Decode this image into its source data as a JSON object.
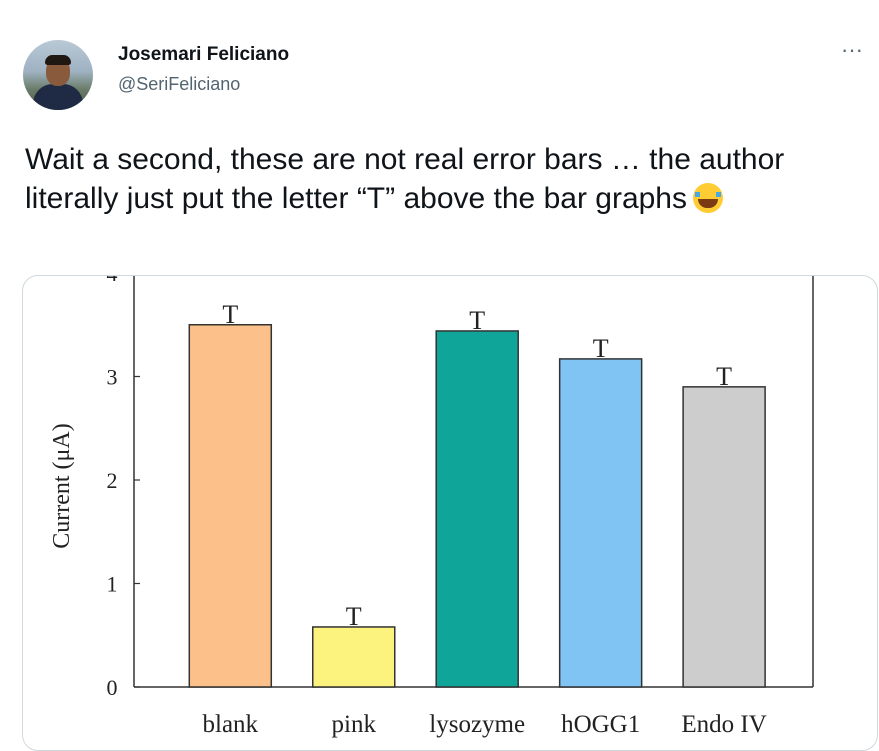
{
  "tweet": {
    "display_name": "Josemari Feliciano",
    "handle": "@SeriFeliciano",
    "more_label": "···",
    "text": "Wait a second, these are not real error bars … the author literally just put the letter “T” above the bar graphs",
    "emoji_icon": "loudly-crying-face-icon"
  },
  "chart_data": {
    "type": "bar",
    "categories": [
      "blank",
      "pink",
      "lysozyme",
      "hOGG1",
      "Endo IV"
    ],
    "values": [
      3.5,
      0.58,
      3.44,
      3.17,
      2.9
    ],
    "colors": [
      "#fcc08b",
      "#fcf27e",
      "#0fa699",
      "#7fc4f3",
      "#cdcdcd"
    ],
    "error_marker": "T",
    "ylabel": "Current (μA)",
    "yticks": [
      "0",
      "1",
      "2",
      "3",
      "4"
    ],
    "ylim": [
      0,
      4
    ],
    "grid": false
  }
}
